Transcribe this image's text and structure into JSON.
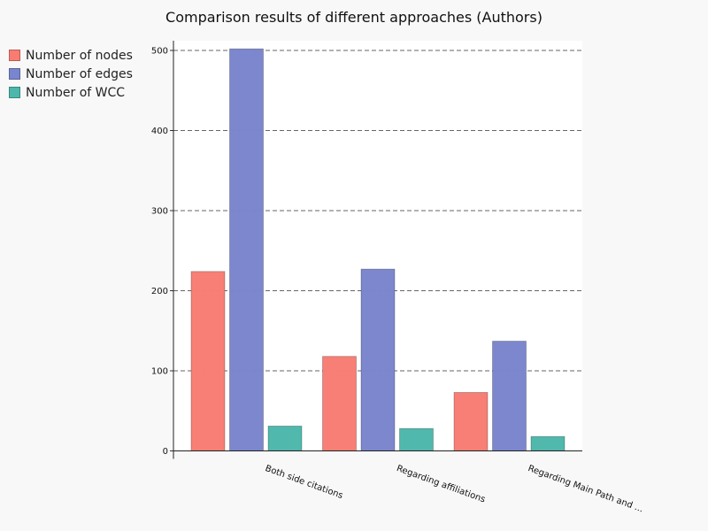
{
  "chart_data": {
    "type": "bar",
    "title": "Comparison results of different approaches (Authors)",
    "xlabel": "",
    "ylabel": "",
    "categories": [
      "Both side citations",
      "Regarding affiliations",
      "Regarding Main Path and ..."
    ],
    "series": [
      {
        "name": "Number of nodes",
        "color": "#f87c72",
        "values": [
          224,
          118,
          73
        ]
      },
      {
        "name": "Number of edges",
        "color": "#7985cd",
        "values": [
          502,
          227,
          137
        ]
      },
      {
        "name": "Number of WCC",
        "color": "#4cb7aa",
        "values": [
          31,
          28,
          18
        ]
      }
    ],
    "yticks": [
      0,
      100,
      200,
      300,
      400,
      500
    ],
    "ylim": [
      0,
      512
    ],
    "grid": "horizontal dashed",
    "legend_position": "top-left"
  }
}
